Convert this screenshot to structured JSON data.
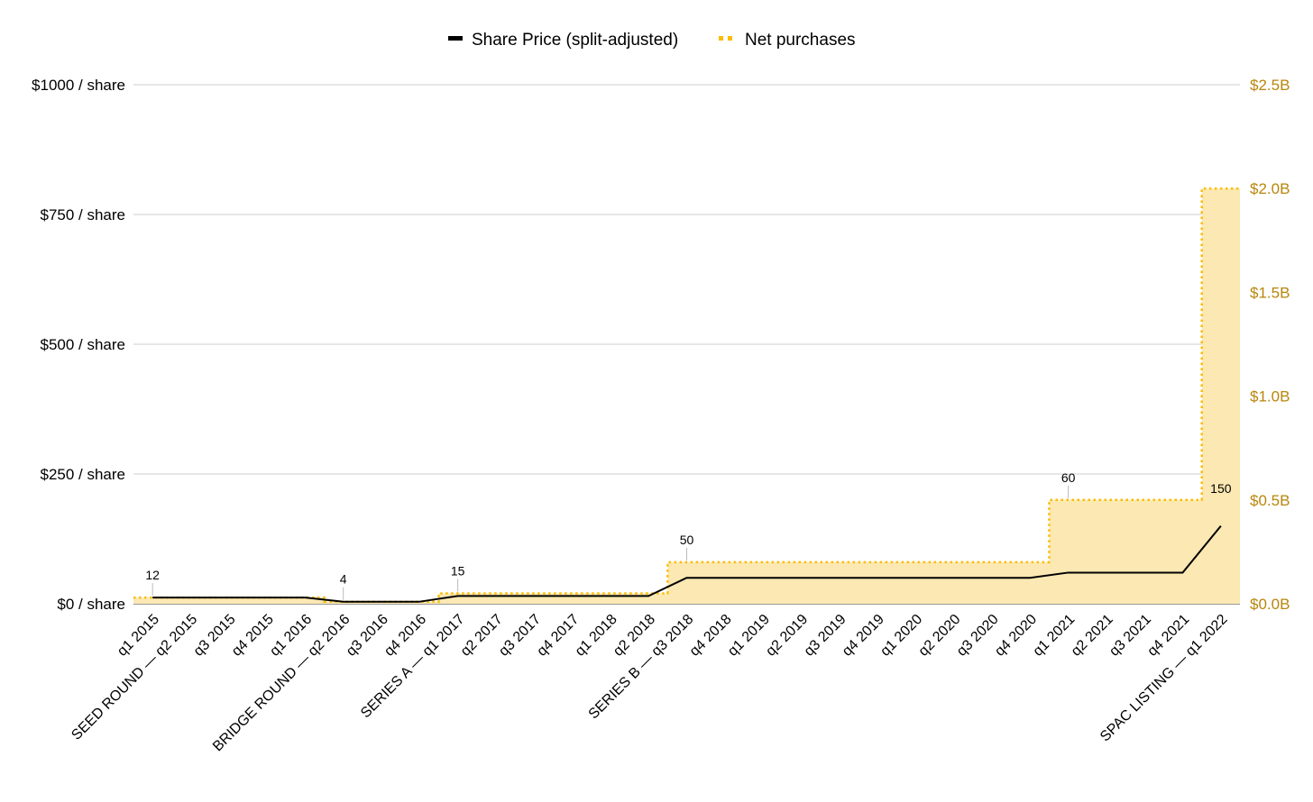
{
  "chart_data": {
    "type": "line",
    "legend": {
      "position": "top-center",
      "items": [
        {
          "label": "Share Price (split-adjusted)",
          "color": "#000000",
          "style": "solid"
        },
        {
          "label": "Net purchases",
          "color": "#FBBC04",
          "style": "dotted"
        }
      ]
    },
    "categories": [
      "q1 2015",
      "SEED ROUND — q2 2015",
      "q3 2015",
      "q4 2015",
      "q1 2016",
      "BRIDGE ROUND — q2 2016",
      "q3 2016",
      "q4 2016",
      "SERIES A — q1 2017",
      "q2 2017",
      "q3 2017",
      "q4 2017",
      "q1 2018",
      "q2 2018",
      "SERIES B — q3 2018",
      "q4 2018",
      "q1 2019",
      "q2 2019",
      "q3 2019",
      "q4 2019",
      "q1 2020",
      "q2 2020",
      "q3 2020",
      "q4 2020",
      "q1 2021",
      "q2 2021",
      "q3 2021",
      "q4 2021",
      "SPAC LISTING — q1 2022"
    ],
    "series": [
      {
        "name": "Share Price (split-adjusted)",
        "axis": "left",
        "color": "#000000",
        "values": [
          12,
          12,
          12,
          12,
          12,
          4,
          4,
          4,
          15,
          15,
          15,
          15,
          15,
          15,
          50,
          50,
          50,
          50,
          50,
          50,
          50,
          50,
          50,
          50,
          60,
          60,
          60,
          60,
          150
        ]
      },
      {
        "name": "Net purchases",
        "axis": "right",
        "color": "#FBBC04",
        "fill": "#FCE8B2",
        "style": "stepped-area",
        "values": [
          0.03,
          0.03,
          0.03,
          0.03,
          0.03,
          0.01,
          0.01,
          0.01,
          0.05,
          0.05,
          0.05,
          0.05,
          0.05,
          0.05,
          0.2,
          0.2,
          0.2,
          0.2,
          0.2,
          0.2,
          0.2,
          0.2,
          0.2,
          0.2,
          0.5,
          0.5,
          0.5,
          0.5,
          2.0
        ]
      }
    ],
    "data_labels": [
      {
        "index": 0,
        "text": "12"
      },
      {
        "index": 5,
        "text": "4"
      },
      {
        "index": 8,
        "text": "15"
      },
      {
        "index": 14,
        "text": "50"
      },
      {
        "index": 24,
        "text": "60"
      },
      {
        "index": 28,
        "text": "150"
      }
    ],
    "y_left": {
      "range": [
        0,
        1000
      ],
      "ticks": [
        0,
        250,
        500,
        750,
        1000
      ],
      "tick_labels": [
        "$0 / share",
        "$250 / share",
        "$500 / share",
        "$750 / share",
        "$1000 / share"
      ]
    },
    "y_right": {
      "range": [
        0,
        2.5
      ],
      "ticks": [
        0,
        0.5,
        1.0,
        1.5,
        2.0,
        2.5
      ],
      "tick_labels": [
        "$0.0B",
        "$0.5B",
        "$1.0B",
        "$1.5B",
        "$2.0B",
        "$2.5B"
      ],
      "color": "#B8860B"
    },
    "grid": true
  }
}
